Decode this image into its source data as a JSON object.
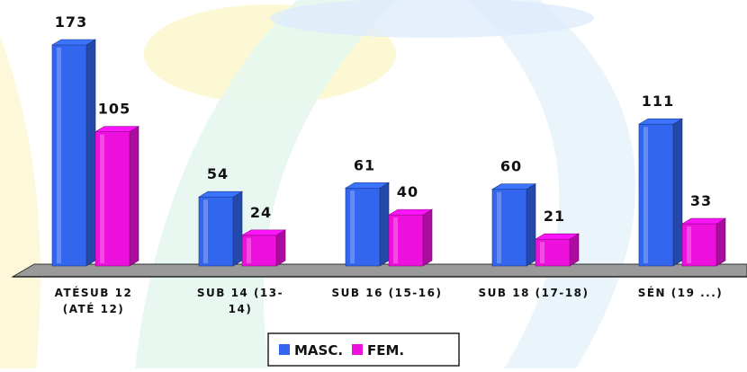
{
  "chart_data": {
    "type": "bar",
    "title": "",
    "xlabel": "",
    "ylabel": "",
    "categories": [
      [
        "ATÉSUB 12",
        "(ATÉ 12)"
      ],
      [
        "SUB 14 (13-",
        "14)"
      ],
      [
        "SUB 16 (15-16)"
      ],
      [
        "SUB 18 (17-18)"
      ],
      [
        "SÉN (19 ...)"
      ]
    ],
    "series": [
      {
        "name": "MASC.",
        "values": [
          173,
          54,
          61,
          60,
          111
        ],
        "color": "#3366ee"
      },
      {
        "name": "FEM.",
        "values": [
          105,
          24,
          40,
          21,
          33
        ],
        "color": "#ee11dd"
      }
    ],
    "ylim": [
      0,
      173
    ],
    "grid": false,
    "legend_position": "bottom",
    "three_d": true
  }
}
